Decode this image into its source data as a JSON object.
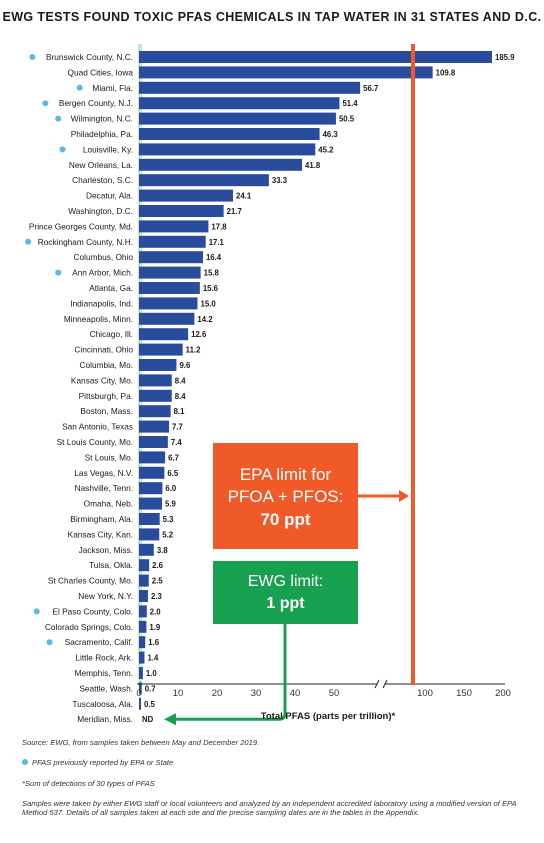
{
  "chart_data": {
    "type": "bar",
    "orientation": "horizontal",
    "title": "EWG TESTS FOUND TOXIC PFAS CHEMICALS IN TAP WATER IN 31 STATES AND D.C.",
    "xlabel": "Total PFAS (parts per trillion)*",
    "ylabel": "",
    "x_axis": {
      "broken": true,
      "segment1": [
        0,
        50
      ],
      "segment2": [
        100,
        200
      ],
      "ticks": [
        0,
        10,
        20,
        30,
        40,
        50,
        100,
        150,
        200
      ]
    },
    "grid": false,
    "bar_color": "#2a4c9c",
    "highlight_color": "#5bb8e8",
    "categories": [
      "Brunswick County, N.C.",
      "Quad Cities, Iowa",
      "Miami, Fla.",
      "Bergen County, N.J.",
      "Wilmington, N.C.",
      "Philadelphia, Pa.",
      "Louisville, Ky.",
      "New Orleans, La.",
      "Charleston, S.C.",
      "Decatur, Ala.",
      "Washington, D.C.",
      "Prince Georges County, Md.",
      "Rockingham County, N.H.",
      "Columbus, Ohio",
      "Ann Arbor, Mich.",
      "Atlanta, Ga.",
      "Indianapolis, Ind.",
      "Minneapolis, Minn.",
      "Chicago, Ill.",
      "Cincinnati, Ohio",
      "Columbia, Mo.",
      "Kansas City, Mo.",
      "Pittsburgh, Pa.",
      "Boston, Mass.",
      "San Antonio, Texas",
      "St Louis County, Mo.",
      "St Louis, Mo.",
      "Las Vegas, N.V.",
      "Nashville, Tenn.",
      "Omaha, Neb.",
      "Birmingham, Ala.",
      "Kansas City, Kan.",
      "Jackson, Miss.",
      "Tulsa, Okla.",
      "St Charles County, Mo.",
      "New York, N.Y.",
      "El Paso County, Colo.",
      "Colorado Springs, Colo.",
      "Sacramento, Calif.",
      "Little Rock, Ark.",
      "Memphis, Tenn.",
      "Seattle, Wash.",
      "Tuscaloosa, Ala.",
      "Meridian, Miss."
    ],
    "values": [
      185.9,
      109.8,
      56.7,
      51.4,
      50.5,
      46.3,
      45.2,
      41.8,
      33.3,
      24.1,
      21.7,
      17.8,
      17.1,
      16.4,
      15.8,
      15.6,
      15.0,
      14.2,
      12.6,
      11.2,
      9.6,
      8.4,
      8.4,
      8.1,
      7.7,
      7.4,
      6.7,
      6.5,
      6.0,
      5.9,
      5.3,
      5.2,
      3.8,
      2.6,
      2.5,
      2.3,
      2.0,
      1.9,
      1.6,
      1.4,
      1.0,
      0.7,
      0.5,
      0
    ],
    "value_labels": [
      "185.9",
      "109.8",
      "56.7",
      "51.4",
      "50.5",
      "46.3",
      "45.2",
      "41.8",
      "33.3",
      "24.1",
      "21.7",
      "17.8",
      "17.1",
      "16.4",
      "15.8",
      "15.6",
      "15.0",
      "14.2",
      "12.6",
      "11.2",
      "9.6",
      "8.4",
      "8.4",
      "8.1",
      "7.7",
      "7.4",
      "6.7",
      "6.5",
      "6.0",
      "5.9",
      "5.3",
      "5.2",
      "3.8",
      "2.6",
      "2.5",
      "2.3",
      "2.0",
      "1.9",
      "1.6",
      "1.4",
      "1.0",
      "0.7",
      "0.5",
      "ND"
    ],
    "previously_reported": [
      true,
      false,
      true,
      true,
      true,
      false,
      true,
      false,
      false,
      false,
      false,
      false,
      true,
      false,
      true,
      false,
      false,
      false,
      false,
      false,
      false,
      false,
      false,
      false,
      false,
      false,
      false,
      false,
      false,
      false,
      false,
      false,
      false,
      false,
      false,
      false,
      true,
      false,
      true,
      false,
      false,
      false,
      false,
      false
    ],
    "annotations": {
      "epa": {
        "value": 70,
        "line1": "EPA limit for",
        "line2": "PFOA + PFOS:",
        "line3": "70 ppt",
        "color": "#f05a28"
      },
      "ewg": {
        "value": 1,
        "line1": "EWG limit:",
        "line2": "1 ppt",
        "color": "#16a050"
      }
    }
  },
  "footer": {
    "source": "Source: EWG, from samples taken between May and December 2019.",
    "legend": "PFAS previously reported by EPA or State",
    "note": "*Sum of detections of 30 types of PFAS",
    "samples": "Samples were taken by either EWG staff or local volunteers and analyzed by an independent accredited laboratory using a modified version of EPA Method 537. Details of all samples taken at each site and the precise sampling dates are in the tables in the Appendix."
  }
}
